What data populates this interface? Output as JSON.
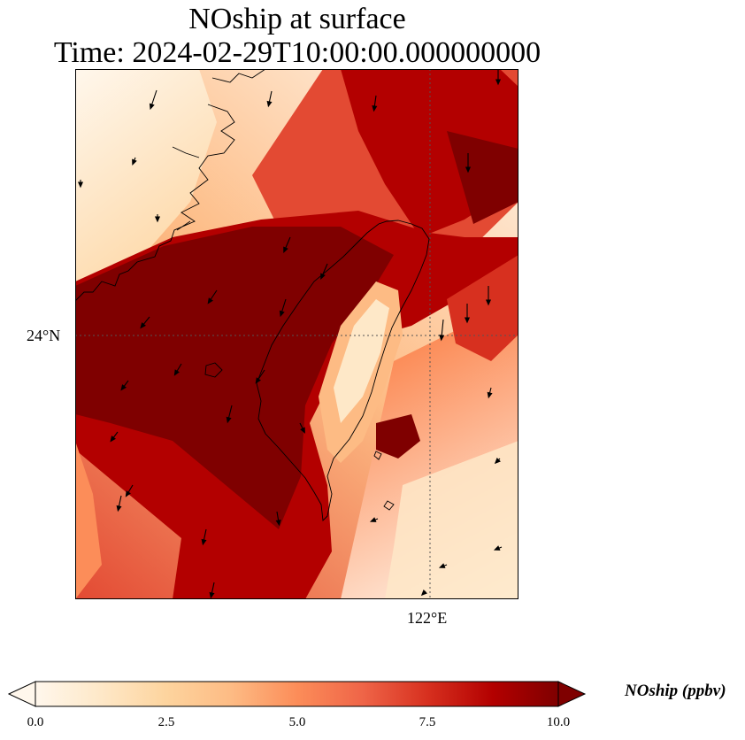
{
  "title": {
    "line1": "NOship at surface",
    "line2": "Time: 2024-02-29T10:00:00.000000000"
  },
  "map": {
    "lat_tick_label": "24°N",
    "lon_tick_label": "122°E",
    "gridlines": "dotted",
    "coastline_color": "#000000"
  },
  "colorbar": {
    "label": "NOship (ppbv)",
    "ticks": [
      "0.0",
      "2.5",
      "5.0",
      "7.5",
      "10.0"
    ],
    "min": 0,
    "max": 10,
    "extend": "both",
    "colormap": "OrRd",
    "colors": [
      "#fff7ec",
      "#fee8c8",
      "#fdd49e",
      "#fdbb84",
      "#fc8d59",
      "#ef6548",
      "#d7301f",
      "#b30000",
      "#7f0000"
    ]
  }
}
